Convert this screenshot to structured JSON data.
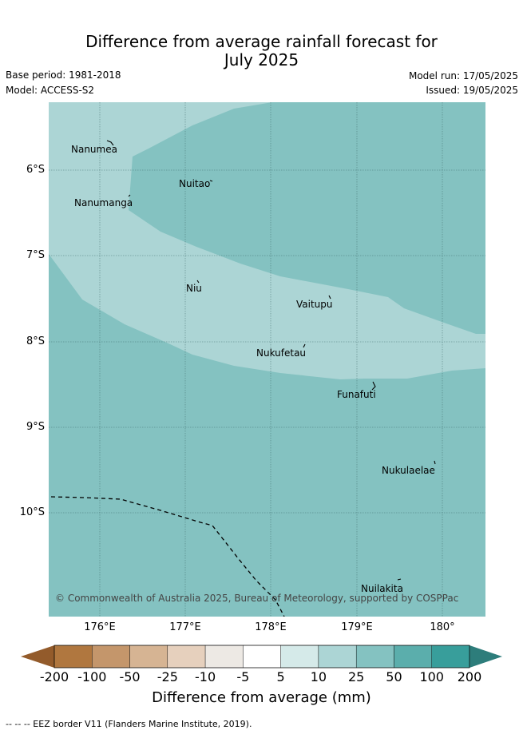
{
  "header": {
    "title_line1": "Difference from average rainfall forecast for",
    "title_line2": "July 2025",
    "base_period": "Base period: 1981-2018",
    "model": "Model: ACCESS-S2",
    "model_run": "Model run: 17/05/2025",
    "issued": "Issued: 19/05/2025"
  },
  "map": {
    "lat_labels": [
      "6°S",
      "7°S",
      "8°S",
      "9°S",
      "10°S"
    ],
    "lon_labels": [
      "176°E",
      "177°E",
      "178°E",
      "179°E",
      "180°"
    ],
    "islands": [
      "Nanumea",
      "Nuitao",
      "Nanumanga",
      "Niu",
      "Vaitupu",
      "Nukufetau",
      "Funafuti",
      "Nukulaelae",
      "Nuilakita"
    ],
    "copyright": "© Commonwealth of Australia 2025, Bureau of Meteorology, supported by COSPPac",
    "colors": {
      "band_10_25": "#acd5d5",
      "band_25_50": "#84c2c1"
    }
  },
  "colorbar": {
    "ticks": [
      "-200",
      "-100",
      "-50",
      "-25",
      "-10",
      "-5",
      "5",
      "10",
      "25",
      "50",
      "100",
      "200"
    ],
    "colors": [
      "#935b2b",
      "#b0773f",
      "#c4966b",
      "#d6b493",
      "#e6d0bd",
      "#ede9e4",
      "#ffffff",
      "#d5eae9",
      "#acd5d5",
      "#84c2c1",
      "#5baeac",
      "#389e9b",
      "#2d7d7b"
    ],
    "label": "Difference from average (mm)"
  },
  "footer": {
    "eez_note": "--  --  -- EEZ border V11 (Flanders Marine Institute, 2019)."
  }
}
